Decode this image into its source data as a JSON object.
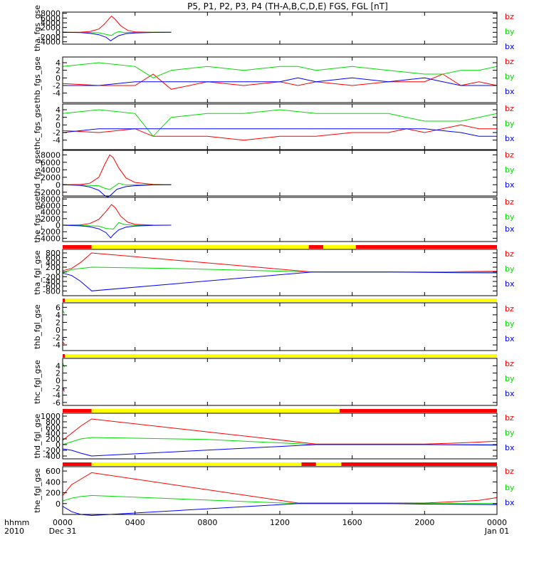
{
  "chart_data": {
    "type": "line",
    "title": "P5, P1, P2, P3, P4 (TH-A,B,C,D,E) FGS, FGL [nT]",
    "colors": {
      "bz": "#ff0000",
      "by": "#00dd00",
      "bx": "#0000ff",
      "bar_red": "#ff0000",
      "bar_yellow": "#ffff00"
    },
    "x_axis": {
      "label_top": "hhmm",
      "label_bottom": "2010",
      "range_hours": [
        0,
        24
      ],
      "major_ticks": [
        {
          "h": 0,
          "label": "0000",
          "sub": "Dec 31"
        },
        {
          "h": 4,
          "label": "0400",
          "sub": ""
        },
        {
          "h": 8,
          "label": "0800",
          "sub": ""
        },
        {
          "h": 12,
          "label": "1200",
          "sub": ""
        },
        {
          "h": 16,
          "label": "1600",
          "sub": ""
        },
        {
          "h": 20,
          "label": "2000",
          "sub": ""
        },
        {
          "h": 24,
          "label": "0000",
          "sub": "Jan 01"
        }
      ]
    },
    "panels": [
      {
        "ylabel": "tha_fgs_gse",
        "ylim": [
          -5000,
          8500
        ],
        "yticks": [
          -4000,
          -2000,
          0,
          2000,
          4000,
          6000,
          8000
        ],
        "series": [
          {
            "name": "bz",
            "x": [
              0,
              1,
              1.5,
              2,
              2.3,
              2.6,
              2.7,
              2.9,
              3.2,
              3.6,
              4,
              5,
              6
            ],
            "y": [
              0,
              80,
              300,
              1400,
              3400,
              6000,
              6800,
              5500,
              2800,
              800,
              200,
              20,
              0
            ]
          },
          {
            "name": "by",
            "x": [
              0,
              1,
              2,
              2.4,
              2.7,
              2.9,
              3.1,
              3.4,
              4,
              5,
              6
            ],
            "y": [
              0,
              -50,
              -200,
              -900,
              -1300,
              -300,
              300,
              -150,
              -50,
              0,
              0
            ]
          },
          {
            "name": "bx",
            "x": [
              0,
              1,
              1.5,
              2,
              2.4,
              2.65,
              2.8,
              3.1,
              3.5,
              4,
              5,
              6
            ],
            "y": [
              0,
              -150,
              -400,
              -1000,
              -2100,
              -3600,
              -2800,
              -1400,
              -600,
              -250,
              -50,
              0
            ]
          }
        ]
      },
      {
        "ylabel": "thb_fgs_gse",
        "ylim": [
          -6.5,
          5.5
        ],
        "yticks": [
          -4,
          -2,
          0,
          2,
          4
        ],
        "series": [
          {
            "name": "bz",
            "x": [
              0,
              2,
              4,
              5,
              6,
              8,
              10,
              12,
              13,
              14,
              16,
              18,
              20,
              21,
              22,
              23,
              24
            ],
            "y": [
              -1.5,
              -2,
              -2,
              1,
              -3,
              -1,
              -2,
              -1,
              -2,
              -1,
              -2,
              -1,
              -1,
              1,
              -2,
              -1,
              -2
            ]
          },
          {
            "name": "by",
            "x": [
              0,
              2,
              4,
              5,
              6,
              8,
              10,
              12,
              13,
              14,
              16,
              18,
              20,
              21,
              22,
              23,
              24
            ],
            "y": [
              3,
              4,
              3,
              0,
              2,
              3,
              2,
              3,
              3,
              2,
              3,
              2,
              1,
              1,
              2,
              2,
              3
            ]
          },
          {
            "name": "bx",
            "x": [
              0,
              2,
              4,
              5,
              6,
              8,
              10,
              12,
              13,
              14,
              16,
              18,
              20,
              21,
              22,
              23,
              24
            ],
            "y": [
              -2,
              -2,
              -1,
              -1,
              -1,
              -1,
              -1,
              -1,
              0,
              -1,
              0,
              -1,
              0,
              -1,
              -2,
              -2,
              -2
            ]
          }
        ]
      },
      {
        "ylabel": "thc_fgs_gse",
        "ylim": [
          -6.5,
          5.5
        ],
        "yticks": [
          -4,
          -2,
          0,
          2,
          4
        ],
        "series": [
          {
            "name": "bz",
            "x": [
              0,
              2,
              4,
              5,
              6,
              8,
              10,
              12,
              14,
              16,
              18,
              19,
              20,
              22,
              23,
              24
            ],
            "y": [
              -1.5,
              -2,
              -1,
              -3,
              -3,
              -3,
              -4,
              -3,
              -3,
              -2,
              -2,
              -1,
              -2,
              0,
              -1,
              -1
            ]
          },
          {
            "name": "by",
            "x": [
              0,
              2,
              4,
              5,
              6,
              8,
              10,
              12,
              14,
              16,
              18,
              19,
              20,
              22,
              23,
              24
            ],
            "y": [
              3,
              4,
              3,
              -3,
              2,
              3,
              3,
              4,
              3,
              3,
              3,
              2,
              1,
              1,
              2,
              3
            ]
          },
          {
            "name": "bx",
            "x": [
              0,
              2,
              4,
              5,
              6,
              8,
              10,
              12,
              14,
              16,
              18,
              19,
              20,
              22,
              23,
              24
            ],
            "y": [
              -2,
              -1,
              -1,
              -1,
              -1,
              -1,
              -1,
              -1,
              -1,
              -1,
              -1,
              -1,
              -1,
              -2,
              -3,
              -3
            ]
          }
        ]
      },
      {
        "ylabel": "thd_fgs_gse",
        "ylim": [
          -3000,
          9200
        ],
        "yticks": [
          -2000,
          0,
          2000,
          4000,
          6000,
          8000
        ],
        "series": [
          {
            "name": "bz",
            "x": [
              0,
              1,
              1.5,
              2,
              2.3,
              2.6,
              2.8,
              3.1,
              3.5,
              4,
              5,
              6
            ],
            "y": [
              0,
              60,
              400,
              2000,
              5200,
              8000,
              7200,
              4500,
              1800,
              600,
              80,
              0
            ]
          },
          {
            "name": "by",
            "x": [
              0,
              1,
              2,
              2.3,
              2.6,
              2.9,
              3.1,
              3.5,
              4,
              5,
              6
            ],
            "y": [
              0,
              -60,
              -300,
              -900,
              -1300,
              -300,
              400,
              -100,
              -50,
              0,
              0
            ]
          },
          {
            "name": "bx",
            "x": [
              0,
              1,
              1.5,
              2,
              2.3,
              2.5,
              2.7,
              3,
              3.5,
              4,
              5,
              6
            ],
            "y": [
              0,
              -200,
              -600,
              -1500,
              -2800,
              -3300,
              -2600,
              -1200,
              -500,
              -250,
              -50,
              0
            ]
          }
        ]
      },
      {
        "ylabel": "the_fgs_gse",
        "ylim": [
          -5000,
          8500
        ],
        "yticks": [
          -4000,
          -2000,
          0,
          2000,
          4000,
          6000,
          8000
        ],
        "series": [
          {
            "name": "bz",
            "x": [
              0,
              1,
              1.5,
              2,
              2.4,
              2.7,
              2.9,
              3.2,
              3.6,
              4,
              5,
              6
            ],
            "y": [
              0,
              100,
              500,
              1800,
              4200,
              6300,
              5400,
              2800,
              900,
              250,
              30,
              0
            ]
          },
          {
            "name": "by",
            "x": [
              0,
              1,
              2,
              2.4,
              2.8,
              3.1,
              3.4,
              4,
              5,
              6
            ],
            "y": [
              0,
              -100,
              -300,
              -1000,
              -1200,
              800,
              200,
              -50,
              0,
              0
            ]
          },
          {
            "name": "bx",
            "x": [
              0,
              1,
              1.5,
              2,
              2.4,
              2.65,
              2.8,
              3.1,
              3.5,
              4,
              5,
              6
            ],
            "y": [
              0,
              -200,
              -500,
              -1100,
              -2300,
              -3900,
              -2900,
              -1400,
              -600,
              -250,
              -50,
              0
            ]
          }
        ]
      },
      {
        "ylabel": "tha_fgl_gse",
        "ylim": [
          -1000,
          950
        ],
        "yticks": [
          -800,
          -600,
          -400,
          -200,
          0,
          200,
          400,
          600,
          800
        ],
        "bar": [
          {
            "from": 0,
            "to": 1.6,
            "c": "red"
          },
          {
            "from": 1.6,
            "to": 13.6,
            "c": "yellow"
          },
          {
            "from": 13.6,
            "to": 14.4,
            "c": "red"
          },
          {
            "from": 14.4,
            "to": 16.2,
            "c": "yellow"
          },
          {
            "from": 16.2,
            "to": 24,
            "c": "red"
          }
        ],
        "series": [
          {
            "name": "bz",
            "x": [
              0,
              0.5,
              1,
              1.6,
              13.8,
              20,
              21,
              22,
              23,
              24
            ],
            "y": [
              50,
              150,
              400,
              800,
              0,
              0,
              0,
              10,
              20,
              30
            ]
          },
          {
            "name": "by",
            "x": [
              0,
              0.5,
              1,
              1.6,
              6,
              13.8,
              20,
              24
            ],
            "y": [
              -50,
              100,
              150,
              200,
              150,
              0,
              0,
              0
            ]
          },
          {
            "name": "bx",
            "x": [
              0,
              0.5,
              1,
              1.6,
              13.8,
              18,
              20,
              22,
              24
            ],
            "y": [
              -50,
              -150,
              -400,
              -800,
              0,
              0,
              -20,
              -30,
              -40
            ]
          }
        ]
      },
      {
        "ylabel": "thb_fgl_gse",
        "ylim": [
          -5.5,
          7.2
        ],
        "yticks": [
          -4,
          -2,
          0,
          2,
          4,
          6
        ],
        "bar": [
          {
            "from": 0,
            "to": 0.12,
            "c": "red"
          },
          {
            "from": 0.12,
            "to": 24,
            "c": "yellow"
          }
        ],
        "series": [
          {
            "name": "bz",
            "x": [
              0,
              0.1
            ],
            "y": [
              -3.2,
              -3.8
            ]
          },
          {
            "name": "by",
            "x": [
              0,
              0.1
            ],
            "y": [
              5.2,
              4.4
            ]
          },
          {
            "name": "bx",
            "x": [
              0,
              0.1
            ],
            "y": [
              -2.2,
              -2.8
            ]
          }
        ]
      },
      {
        "ylabel": "thc_fgl_gse",
        "ylim": [
          -6.8,
          6
        ],
        "yticks": [
          -6,
          -4,
          -2,
          0,
          2,
          4
        ],
        "bar": [
          {
            "from": 0,
            "to": 0.12,
            "c": "red"
          },
          {
            "from": 0.12,
            "to": 24,
            "c": "yellow"
          }
        ],
        "series": [
          {
            "name": "bz",
            "x": [
              0,
              0.1
            ],
            "y": [
              -2.4,
              -3.0
            ]
          },
          {
            "name": "by",
            "x": [
              0,
              0.1
            ],
            "y": [
              4.8,
              3.6
            ]
          },
          {
            "name": "bx",
            "x": [
              0,
              0.1
            ],
            "y": [
              -2.0,
              -2.6
            ]
          }
        ]
      },
      {
        "ylabel": "thd_fgl_gse",
        "ylim": [
          -500,
          1100
        ],
        "yticks": [
          -400,
          -200,
          0,
          200,
          400,
          600,
          800,
          1000
        ],
        "bar": [
          {
            "from": 0,
            "to": 1.6,
            "c": "red"
          },
          {
            "from": 1.6,
            "to": 15.3,
            "c": "yellow"
          },
          {
            "from": 15.3,
            "to": 24,
            "c": "red"
          }
        ],
        "series": [
          {
            "name": "bz",
            "x": [
              0,
              0.5,
              1,
              1.6,
              14,
              20,
              22,
              24
            ],
            "y": [
              150,
              400,
              650,
              900,
              20,
              20,
              60,
              120
            ]
          },
          {
            "name": "by",
            "x": [
              0,
              0.5,
              1,
              1.6,
              8,
              14,
              20,
              24
            ],
            "y": [
              0,
              100,
              200,
              250,
              180,
              0,
              0,
              0
            ]
          },
          {
            "name": "bx",
            "x": [
              0,
              0.5,
              1,
              1.6,
              14,
              18,
              20,
              24
            ],
            "y": [
              -150,
              -200,
              -300,
              -400,
              0,
              0,
              0,
              -20
            ]
          }
        ]
      },
      {
        "ylabel": "the_fgl_gse",
        "ylim": [
          -200,
          680
        ],
        "yticks": [
          0,
          200,
          400,
          600
        ],
        "bar": [
          {
            "from": 0,
            "to": 1.6,
            "c": "red"
          },
          {
            "from": 1.6,
            "to": 13.2,
            "c": "yellow"
          },
          {
            "from": 13.2,
            "to": 14,
            "c": "red"
          },
          {
            "from": 14,
            "to": 15.4,
            "c": "yellow"
          },
          {
            "from": 15.4,
            "to": 24,
            "c": "red"
          }
        ],
        "series": [
          {
            "name": "bz",
            "x": [
              0,
              0.5,
              1,
              1.6,
              13,
              20,
              22,
              23,
              24
            ],
            "y": [
              150,
              350,
              450,
              570,
              10,
              10,
              40,
              60,
              110
            ]
          },
          {
            "name": "by",
            "x": [
              0,
              0.5,
              1,
              1.6,
              13,
              20,
              24
            ],
            "y": [
              50,
              100,
              130,
              150,
              0,
              0,
              0
            ]
          },
          {
            "name": "bx",
            "x": [
              0,
              0.5,
              1,
              1.6,
              13,
              18,
              20,
              24
            ],
            "y": [
              -50,
              -150,
              -200,
              -220,
              0,
              0,
              -10,
              -20
            ]
          }
        ]
      }
    ]
  }
}
